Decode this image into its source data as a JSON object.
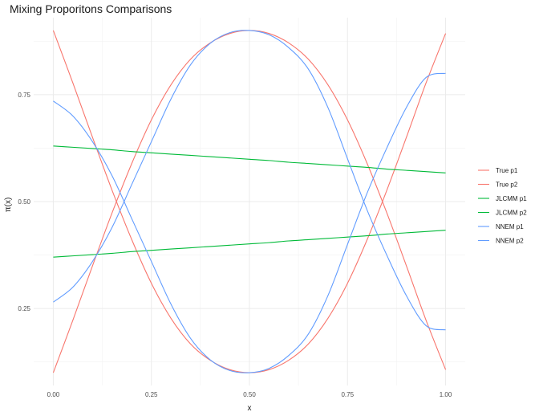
{
  "chart_data": {
    "type": "line",
    "title": "Mixing Proporitons Comparisons",
    "xlabel": "x",
    "ylabel": "π(x)",
    "xlim": [
      -0.05,
      1.05
    ],
    "ylim": [
      0.07,
      0.93
    ],
    "x_ticks": [
      {
        "value": 0.0,
        "label": "0.00"
      },
      {
        "value": 0.25,
        "label": "0.25"
      },
      {
        "value": 0.5,
        "label": "0.50"
      },
      {
        "value": 0.75,
        "label": "0.75"
      },
      {
        "value": 1.0,
        "label": "1.00"
      }
    ],
    "y_ticks": [
      {
        "value": 0.25,
        "label": "0.25"
      },
      {
        "value": 0.5,
        "label": "0.50"
      },
      {
        "value": 0.75,
        "label": "0.75"
      }
    ],
    "grid": true,
    "legend_position": "right",
    "x": [
      0,
      0.05,
      0.1,
      0.15,
      0.2,
      0.25,
      0.3,
      0.35,
      0.4,
      0.45,
      0.5,
      0.55,
      0.6,
      0.65,
      0.7,
      0.75,
      0.8,
      0.85,
      0.9,
      0.95,
      1.0
    ],
    "series": [
      {
        "name": "True p1",
        "color": "#F8766D",
        "values": [
          0.9,
          0.777,
          0.65,
          0.526,
          0.411,
          0.309,
          0.227,
          0.167,
          0.129,
          0.107,
          0.1,
          0.107,
          0.129,
          0.167,
          0.227,
          0.309,
          0.411,
          0.526,
          0.65,
          0.777,
          0.893
        ]
      },
      {
        "name": "True p2",
        "color": "#F8766D",
        "values": [
          0.1,
          0.223,
          0.35,
          0.474,
          0.589,
          0.691,
          0.773,
          0.833,
          0.871,
          0.893,
          0.9,
          0.893,
          0.871,
          0.833,
          0.773,
          0.691,
          0.589,
          0.474,
          0.35,
          0.223,
          0.107
        ]
      },
      {
        "name": "JLCMM p1",
        "color": "#00BA38",
        "values": [
          0.63,
          0.627,
          0.624,
          0.621,
          0.617,
          0.614,
          0.611,
          0.608,
          0.605,
          0.602,
          0.599,
          0.596,
          0.592,
          0.589,
          0.586,
          0.583,
          0.58,
          0.576,
          0.573,
          0.57,
          0.567
        ]
      },
      {
        "name": "JLCMM p2",
        "color": "#00BA38",
        "values": [
          0.37,
          0.373,
          0.376,
          0.379,
          0.383,
          0.386,
          0.389,
          0.392,
          0.395,
          0.398,
          0.401,
          0.404,
          0.408,
          0.411,
          0.414,
          0.417,
          0.42,
          0.424,
          0.427,
          0.43,
          0.433
        ]
      },
      {
        "name": "NNEM p1",
        "color": "#619CFF",
        "values": [
          0.735,
          0.7,
          0.64,
          0.56,
          0.46,
          0.36,
          0.26,
          0.18,
          0.13,
          0.105,
          0.1,
          0.11,
          0.14,
          0.19,
          0.28,
          0.4,
          0.52,
          0.625,
          0.72,
          0.79,
          0.8
        ]
      },
      {
        "name": "NNEM p2",
        "color": "#619CFF",
        "values": [
          0.265,
          0.3,
          0.36,
          0.44,
          0.54,
          0.64,
          0.74,
          0.82,
          0.87,
          0.895,
          0.9,
          0.89,
          0.86,
          0.81,
          0.72,
          0.6,
          0.48,
          0.375,
          0.28,
          0.21,
          0.2
        ]
      }
    ]
  }
}
